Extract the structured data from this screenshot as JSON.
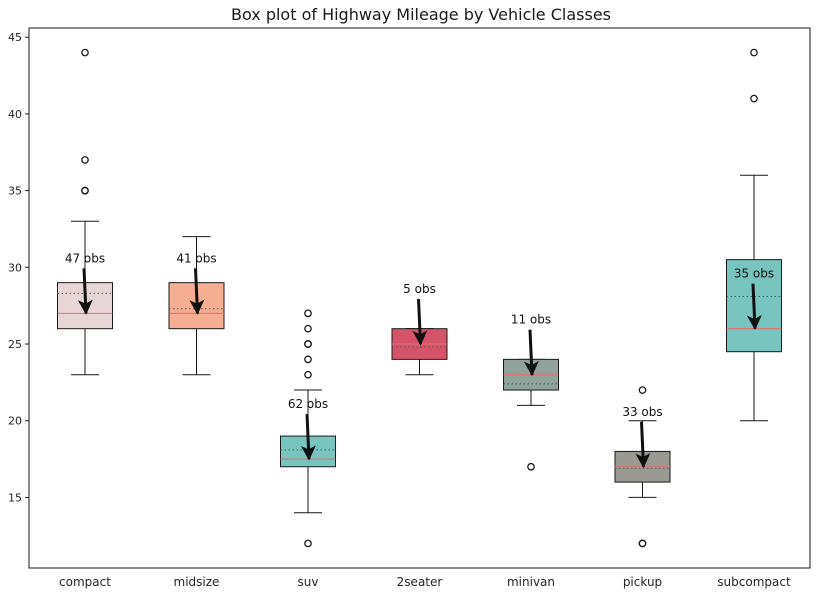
{
  "chart_data": {
    "type": "box",
    "title": "Box plot of Highway Mileage by Vehicle Classes",
    "xlabel": "",
    "ylabel": "",
    "ylim": [
      10.4,
      45.6
    ],
    "yticks": [
      15,
      20,
      25,
      30,
      35,
      40,
      45
    ],
    "grid": false,
    "categories": [
      "compact",
      "midsize",
      "suv",
      "2seater",
      "minivan",
      "pickup",
      "subcompact"
    ],
    "boxes": [
      {
        "category": "compact",
        "whisker_low": 23,
        "q1": 26,
        "median": 27,
        "mean": 28.3,
        "q3": 29,
        "whisker_high": 33,
        "outliers": [
          35,
          35,
          37,
          44
        ],
        "color": "#e8d6d6",
        "annotation": "47 obs"
      },
      {
        "category": "midsize",
        "whisker_low": 23,
        "q1": 26,
        "median": 27,
        "mean": 27.3,
        "q3": 29,
        "whisker_high": 32,
        "outliers": [],
        "color": "#f5ae92",
        "annotation": "41 obs"
      },
      {
        "category": "suv",
        "whisker_low": 14,
        "q1": 17,
        "median": 17.5,
        "mean": 18.1,
        "q3": 19,
        "whisker_high": 22,
        "outliers": [
          12,
          23,
          24,
          25,
          25,
          26,
          27
        ],
        "color": "#78c4be",
        "annotation": "62 obs"
      },
      {
        "category": "2seater",
        "whisker_low": 23,
        "q1": 24,
        "median": 25,
        "mean": 24.8,
        "q3": 26,
        "whisker_high": 26,
        "outliers": [],
        "color": "#d6546a",
        "annotation": "5 obs"
      },
      {
        "category": "minivan",
        "whisker_low": 21,
        "q1": 22,
        "median": 23,
        "mean": 22.4,
        "q3": 24,
        "whisker_high": 24,
        "outliers": [
          17
        ],
        "color": "#8fa39a",
        "annotation": "11 obs"
      },
      {
        "category": "pickup",
        "whisker_low": 15,
        "q1": 16,
        "median": 17,
        "mean": 16.9,
        "q3": 18,
        "whisker_high": 20,
        "outliers": [
          12,
          12,
          22
        ],
        "color": "#9a9a92",
        "annotation": "33 obs"
      },
      {
        "category": "subcompact",
        "whisker_low": 20,
        "q1": 24.5,
        "median": 26,
        "mean": 28.1,
        "q3": 30.5,
        "whisker_high": 36,
        "outliers": [
          41,
          44
        ],
        "color": "#78c4be",
        "annotation": "35 obs"
      }
    ],
    "median_color": "#e86a6a",
    "mean_line_color": "#2d6a5a",
    "outlier_marker": "open-circle",
    "arrow_color": "#111111"
  }
}
